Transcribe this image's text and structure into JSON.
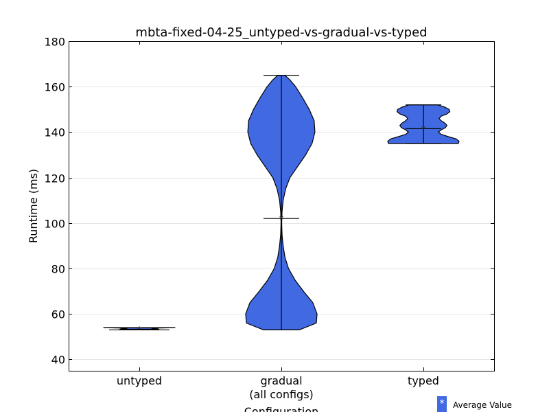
{
  "chart_data": {
    "type": "violin",
    "title": "mbta-fixed-04-25_untyped-vs-gradual-vs-typed",
    "xlabel": "Configuration",
    "ylabel": "Runtime (ms)",
    "ylim": [
      35,
      180
    ],
    "yticks": [
      40,
      60,
      80,
      100,
      120,
      140,
      160,
      180
    ],
    "grid": "horizontal",
    "legend_placement": "bottom-right",
    "fill_color": "#4169e1",
    "categories": [
      {
        "label": "untyped",
        "sublabel": ""
      },
      {
        "label": "gradual",
        "sublabel": "(all configs)"
      },
      {
        "label": "typed",
        "sublabel": ""
      }
    ],
    "violins": [
      {
        "category": "untyped",
        "min": 53,
        "max": 54,
        "mean": 53.3,
        "density": [
          [
            53.0,
            0.45
          ],
          [
            53.2,
            0.55
          ],
          [
            53.4,
            0.52
          ],
          [
            53.6,
            0.35
          ],
          [
            53.8,
            0.5
          ],
          [
            54.0,
            1.0
          ]
        ]
      },
      {
        "category": "gradual",
        "min": 53,
        "max": 165,
        "mean": 102,
        "density": [
          [
            53,
            0.5
          ],
          [
            56,
            0.98
          ],
          [
            60,
            1.0
          ],
          [
            65,
            0.88
          ],
          [
            70,
            0.62
          ],
          [
            75,
            0.38
          ],
          [
            80,
            0.2
          ],
          [
            85,
            0.1
          ],
          [
            90,
            0.05
          ],
          [
            95,
            0.02
          ],
          [
            100,
            0.01
          ],
          [
            105,
            0.02
          ],
          [
            110,
            0.05
          ],
          [
            115,
            0.12
          ],
          [
            120,
            0.24
          ],
          [
            125,
            0.46
          ],
          [
            130,
            0.68
          ],
          [
            135,
            0.86
          ],
          [
            140,
            0.94
          ],
          [
            145,
            0.92
          ],
          [
            150,
            0.78
          ],
          [
            155,
            0.6
          ],
          [
            160,
            0.4
          ],
          [
            163,
            0.24
          ],
          [
            165,
            0.1
          ]
        ]
      },
      {
        "category": "typed",
        "min": 135,
        "max": 152,
        "mean": 141.5,
        "density": [
          [
            135,
            0.98
          ],
          [
            136,
            1.0
          ],
          [
            137,
            0.92
          ],
          [
            138,
            0.7
          ],
          [
            139,
            0.5
          ],
          [
            140,
            0.42
          ],
          [
            141,
            0.5
          ],
          [
            142,
            0.62
          ],
          [
            143,
            0.66
          ],
          [
            144,
            0.6
          ],
          [
            145,
            0.5
          ],
          [
            146,
            0.44
          ],
          [
            147,
            0.5
          ],
          [
            148,
            0.66
          ],
          [
            149,
            0.74
          ],
          [
            150,
            0.72
          ],
          [
            151,
            0.6
          ],
          [
            152,
            0.4
          ]
        ]
      }
    ],
    "legend": {
      "label": "Average Value",
      "marker": "*"
    }
  }
}
